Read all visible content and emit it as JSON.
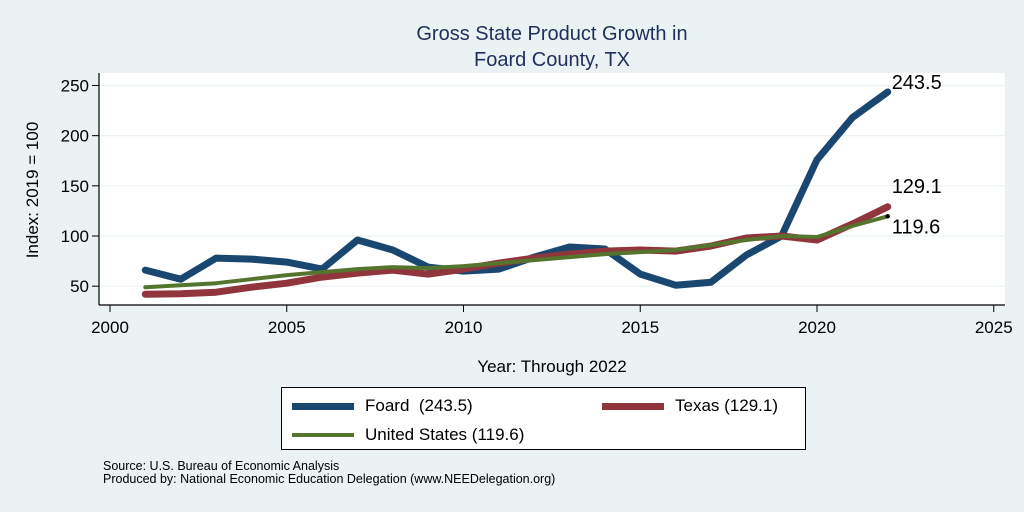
{
  "chart_data": {
    "type": "line",
    "title": [
      "Gross State Product Growth in",
      "Foard County, TX"
    ],
    "xlabel": "Year: Through 2022",
    "ylabel": "Index: 2019 = 100",
    "xlim": [
      2000,
      2025
    ],
    "ylim": [
      30,
      260
    ],
    "xticks": [
      2000,
      2005,
      2010,
      2015,
      2020,
      2025
    ],
    "yticks": [
      50,
      100,
      150,
      200,
      250
    ],
    "grid": "horizontal",
    "x": [
      2001,
      2002,
      2003,
      2004,
      2005,
      2006,
      2007,
      2008,
      2009,
      2010,
      2011,
      2012,
      2013,
      2014,
      2015,
      2016,
      2017,
      2018,
      2019,
      2020,
      2021,
      2022
    ],
    "series": [
      {
        "name": "Foard",
        "color": "#1a476f",
        "values": [
          66,
          57,
          78,
          77,
          74,
          67,
          96,
          86,
          69,
          65,
          67,
          79,
          89,
          87,
          62,
          51,
          54,
          81,
          100,
          176,
          218,
          243.5
        ],
        "end_label": "243.5"
      },
      {
        "name": "Texas",
        "color": "#90353b",
        "values": [
          42,
          42.5,
          44,
          49,
          53,
          59,
          63,
          66,
          62,
          67,
          73,
          78,
          82,
          85,
          86,
          85,
          90,
          98,
          100,
          96,
          112,
          129.1
        ],
        "end_label": "129.1"
      },
      {
        "name": "United States",
        "color": "#55752f",
        "values": [
          49,
          51,
          53,
          57,
          61,
          64,
          67,
          69,
          68,
          70,
          73,
          76,
          79,
          82,
          84,
          86,
          91,
          96,
          100,
          99,
          110,
          119.6
        ],
        "end_label": "119.6"
      }
    ],
    "legend": {
      "position": "bottom",
      "entries": [
        "Foard  (243.5)",
        "Texas (129.1)",
        "United States (119.6)"
      ]
    },
    "notes": [
      "Source: U.S. Bureau of Economic Analysis",
      "Produced by: National Economic Education Delegation (www.NEEDelegation.org)"
    ]
  },
  "colors": {
    "background": "#eaf2f3",
    "plot_background": "#ffffff",
    "title": "#1e2f5c"
  }
}
